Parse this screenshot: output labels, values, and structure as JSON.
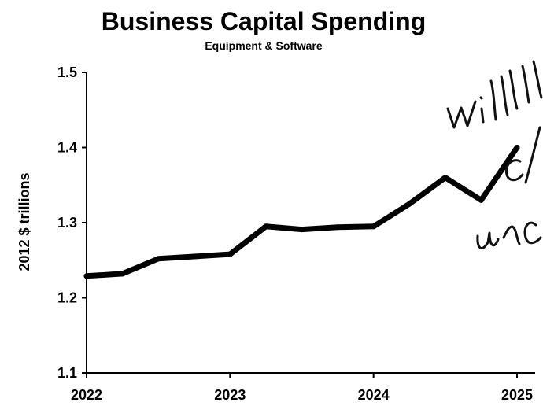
{
  "chart_data": {
    "type": "line",
    "title": "Business Capital Spending",
    "subtitle": "Equipment & Software",
    "xlabel": "",
    "ylabel": "2012 $ trillions",
    "x_ticks": [
      "2022",
      "2023",
      "2024",
      "2025"
    ],
    "y_ticks": [
      "1.1",
      "1.2",
      "1.3",
      "1.4",
      "1.5"
    ],
    "xlim": [
      2022,
      2025
    ],
    "ylim": [
      1.1,
      1.5
    ],
    "grid": false,
    "series": [
      {
        "x": [
          2022.0,
          2022.25,
          2022.5,
          2022.75,
          2023.0,
          2023.25,
          2023.5,
          2023.75,
          2024.0,
          2024.25,
          2024.5,
          2024.75,
          2025.0
        ],
        "values": [
          1.229,
          1.232,
          1.252,
          1.255,
          1.258,
          1.295,
          1.291,
          1.294,
          1.295,
          1.325,
          1.36,
          1.33,
          1.4
        ],
        "color": "#000000"
      }
    ],
    "annotations": [
      {
        "text": "will",
        "style": "handwritten"
      },
      {
        "text": "d",
        "style": "handwritten"
      },
      {
        "text": "unc",
        "style": "handwritten"
      }
    ]
  }
}
